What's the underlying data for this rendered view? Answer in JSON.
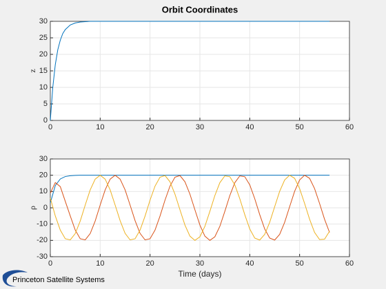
{
  "chart_data": [
    {
      "type": "line",
      "title": "Orbit Coordinates",
      "ylabel": "z",
      "x": [
        0,
        0.5,
        1,
        1.5,
        2,
        2.5,
        3,
        4,
        5,
        6,
        7,
        8,
        10,
        56
      ],
      "series": [
        {
          "color": "#0072bd",
          "values": [
            0,
            10.1,
            16.9,
            21.4,
            24.3,
            26.3,
            27.5,
            28.9,
            29.5,
            29.8,
            29.9,
            30,
            30,
            30
          ]
        }
      ],
      "xlim": [
        0,
        60
      ],
      "xticks": [
        0,
        10,
        20,
        30,
        40,
        50,
        60
      ],
      "ylim": [
        0,
        30
      ],
      "yticks": [
        0,
        5,
        10,
        15,
        20,
        25,
        30
      ],
      "grid": true
    },
    {
      "type": "line",
      "xlabel": "Time (days)",
      "ylabel": "ρ",
      "x": [
        0,
        1,
        2,
        3,
        4,
        5,
        6,
        7,
        8,
        9,
        10,
        11,
        12,
        13,
        14,
        15,
        16,
        17,
        18,
        19,
        20,
        21,
        22,
        23,
        24,
        25,
        26,
        27,
        28,
        29,
        30,
        31,
        32,
        33,
        34,
        35,
        36,
        37,
        38,
        39,
        40,
        41,
        42,
        43,
        44,
        45,
        46,
        47,
        48,
        49,
        50,
        51,
        52,
        53,
        54,
        55,
        56
      ],
      "series": [
        {
          "color": "#0072bd",
          "values": [
            3,
            13.7,
            17.7,
            19.2,
            19.7,
            19.9,
            20,
            20,
            20,
            20,
            20,
            20,
            20,
            20,
            20,
            20,
            20,
            20,
            20,
            20,
            20,
            20,
            20,
            20,
            20,
            20,
            20,
            20,
            20,
            20,
            20,
            20,
            20,
            20,
            20,
            20,
            20,
            20,
            20,
            20,
            20,
            20,
            20,
            20,
            20,
            20,
            20,
            20,
            20,
            20,
            20,
            20,
            20,
            20,
            20,
            20,
            20
          ]
        },
        {
          "color": "#d95319",
          "values": [
            9,
            15.5,
            13,
            4,
            -5,
            -13.7,
            -19,
            -19.7,
            -15.8,
            -8.1,
            1.7,
            11,
            17.6,
            20,
            17.6,
            11,
            1.7,
            -7.9,
            -15.7,
            -19.7,
            -19,
            -13.7,
            -5.1,
            4.7,
            13.3,
            18.8,
            19.8,
            16,
            8.4,
            -1.2,
            -10.6,
            -17.4,
            -20,
            -17.8,
            -11.4,
            -2.2,
            7.5,
            15.4,
            19.6,
            19.1,
            14.1,
            5.6,
            -4.2,
            -13,
            -18.6,
            -19.8,
            -16.3,
            -8.9,
            0.7,
            10.1,
            17.1,
            20,
            18.1,
            11.8,
            2.7,
            -7,
            -15.1
          ]
        },
        {
          "color": "#edb120",
          "values": [
            6,
            -5,
            -13.7,
            -19,
            -19.7,
            -15.8,
            -8.1,
            1.7,
            11,
            17.6,
            20,
            17.6,
            11,
            1.7,
            -7.9,
            -15.7,
            -19.7,
            -19,
            -13.7,
            -5.1,
            4.7,
            13.3,
            18.8,
            19.8,
            16,
            8.4,
            -1.2,
            -10.6,
            -17.4,
            -20,
            -17.8,
            -11.4,
            -2.2,
            7.5,
            15.4,
            19.6,
            19.1,
            14.1,
            5.6,
            -4.2,
            -13,
            -18.6,
            -19.8,
            -16.3,
            -8.9,
            0.7,
            10.1,
            17.1,
            20,
            18.1,
            11.8,
            2.7,
            -7,
            -15.1,
            -19.5,
            -19.3,
            -14.4
          ]
        }
      ],
      "xlim": [
        0,
        60
      ],
      "xticks": [
        0,
        10,
        20,
        30,
        40,
        50,
        60
      ],
      "ylim": [
        -30,
        30
      ],
      "yticks": [
        -30,
        -20,
        -10,
        0,
        10,
        20,
        30
      ],
      "grid": true
    }
  ],
  "footer": {
    "text": "Princeton Satellite Systems"
  }
}
